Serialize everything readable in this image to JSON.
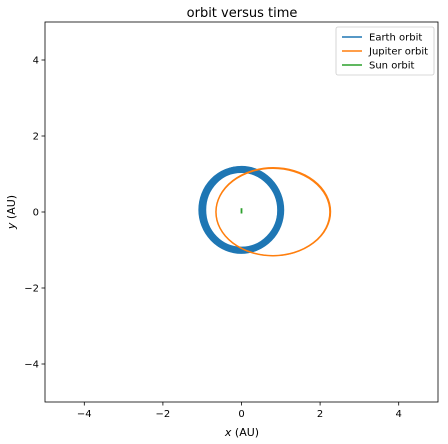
{
  "chart_data": {
    "type": "line",
    "title": "orbit versus time",
    "xlabel": "x (AU)",
    "ylabel": "y (AU)",
    "xlim": [
      -5,
      5
    ],
    "ylim": [
      -5,
      5
    ],
    "xticks": [
      -4,
      -2,
      0,
      2,
      4
    ],
    "yticks": [
      -4,
      -2,
      0,
      2,
      4
    ],
    "xtick_labels": [
      "−4",
      "−2",
      "0",
      "2",
      "4"
    ],
    "ytick_labels": [
      "−4",
      "−2",
      "0",
      "2",
      "4"
    ],
    "grid": false,
    "legend_position": "top-right",
    "series": [
      {
        "name": "Earth orbit",
        "color": "#1f77b4",
        "center": [
          0.0,
          0.05
        ],
        "radii": [
          [
            0.93,
            1.0
          ],
          [
            1.06,
            1.13
          ]
        ]
      },
      {
        "name": "Jupiter orbit",
        "color": "#ff7f0e",
        "center": [
          0.8,
          0.0
        ],
        "radius": [
          1.45,
          1.15
        ]
      },
      {
        "name": "Sun orbit",
        "color": "#2ca02c",
        "points": [
          [
            0.0,
            0.0
          ],
          [
            0.0,
            0.06
          ]
        ]
      }
    ]
  }
}
